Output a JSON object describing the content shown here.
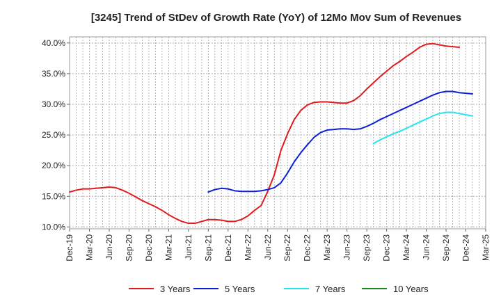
{
  "chart_data": {
    "type": "line",
    "title": "[3245]  Trend of StDev of Growth Rate (YoY) of 12Mo Mov Sum of Revenues",
    "xlabel": "",
    "ylabel": "",
    "y_unit": "%",
    "ylim": [
      9.7,
      41.0
    ],
    "y_ticks": [
      10.0,
      15.0,
      20.0,
      25.0,
      30.0,
      35.0,
      40.0
    ],
    "y_tick_labels": [
      "10.0%",
      "15.0%",
      "20.0%",
      "25.0%",
      "30.0%",
      "35.0%",
      "40.0%"
    ],
    "x_tick_labels": [
      "Dec-19",
      "Mar-20",
      "Jun-20",
      "Sep-20",
      "Dec-20",
      "Mar-21",
      "Jun-21",
      "Sep-21",
      "Dec-21",
      "Mar-22",
      "Jun-22",
      "Sep-22",
      "Dec-22",
      "Mar-23",
      "Jun-23",
      "Sep-23",
      "Dec-23",
      "Mar-24",
      "Jun-24",
      "Sep-24",
      "Dec-24",
      "Mar-25"
    ],
    "x_month_count": 64,
    "grid": true,
    "legend_position": "bottom",
    "series": [
      {
        "name": "3 Years",
        "color": "#e31a1c",
        "start_month_index": 0,
        "values": [
          15.7,
          16.0,
          16.2,
          16.2,
          16.3,
          16.4,
          16.5,
          16.4,
          16.0,
          15.5,
          14.9,
          14.3,
          13.8,
          13.3,
          12.7,
          12.0,
          11.4,
          10.9,
          10.6,
          10.6,
          10.9,
          11.2,
          11.2,
          11.1,
          10.9,
          10.9,
          11.2,
          11.8,
          12.7,
          13.5,
          15.8,
          18.5,
          22.5,
          25.2,
          27.5,
          29.0,
          29.9,
          30.3,
          30.4,
          30.4,
          30.3,
          30.2,
          30.2,
          30.6,
          31.4,
          32.5,
          33.5,
          34.5,
          35.4,
          36.3,
          37.0,
          37.8,
          38.5,
          39.3,
          39.8,
          39.9,
          39.7,
          39.5,
          39.4,
          39.3
        ]
      },
      {
        "name": "5 Years",
        "color": "#0a1fd6",
        "start_month_index": 21,
        "values": [
          15.7,
          16.1,
          16.3,
          16.2,
          15.9,
          15.8,
          15.8,
          15.8,
          15.9,
          16.1,
          16.4,
          17.2,
          18.8,
          20.6,
          22.1,
          23.4,
          24.6,
          25.4,
          25.8,
          25.9,
          26.0,
          26.0,
          25.9,
          26.0,
          26.4,
          26.9,
          27.5,
          28.0,
          28.5,
          29.0,
          29.5,
          30.0,
          30.5,
          31.0,
          31.5,
          31.9,
          32.1,
          32.1,
          31.9,
          31.8,
          31.7
        ]
      },
      {
        "name": "7 Years",
        "color": "#22e5f0",
        "start_month_index": 46,
        "values": [
          23.6,
          24.2,
          24.7,
          25.2,
          25.6,
          26.1,
          26.6,
          27.1,
          27.6,
          28.1,
          28.5,
          28.7,
          28.7,
          28.5,
          28.3,
          28.1
        ]
      },
      {
        "name": "10 Years",
        "color": "#1a8a1a",
        "start_month_index": 0,
        "values": []
      }
    ]
  }
}
